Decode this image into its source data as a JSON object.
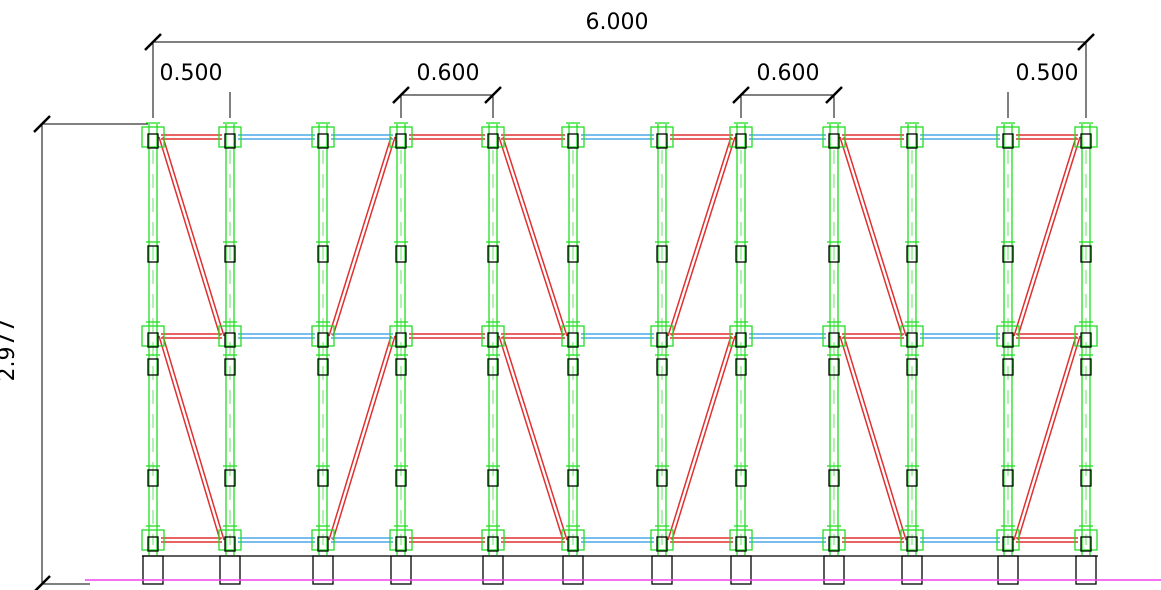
{
  "dimensions": {
    "overall_width": "6.000",
    "bay_left": "0.500",
    "bay_mid_left": "0.600",
    "bay_mid_right": "0.600",
    "bay_right": "0.500",
    "height": "2.977"
  },
  "colors": {
    "post": "#22dd22",
    "brace": "#e03030",
    "ledger": "#4aa8e8",
    "dimension": "#000000",
    "ground": "#ee44ee",
    "foot": "#000000"
  },
  "frame": {
    "post_count": 12,
    "lift_count": 2,
    "brace_pattern": [
      "left-down",
      "none",
      "right-down",
      "none",
      "left-down",
      "none",
      "right-down",
      "none",
      "left-down",
      "none",
      "right-down"
    ],
    "ledger_colors": [
      "red",
      "blue",
      "blue",
      "red",
      "red",
      "blue",
      "red",
      "blue",
      "red",
      "blue",
      "red"
    ]
  }
}
